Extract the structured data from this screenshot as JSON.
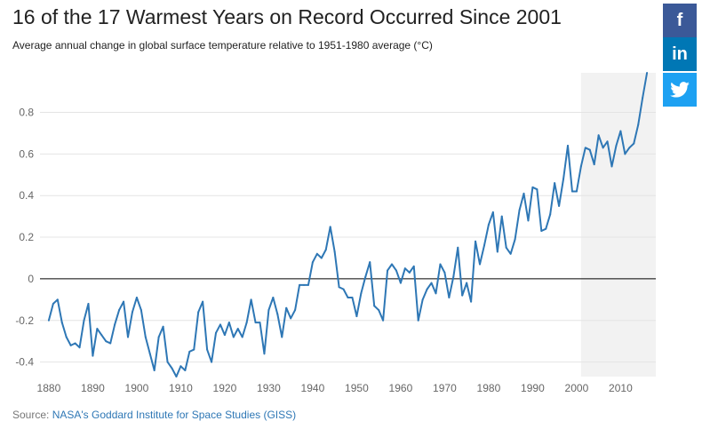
{
  "header": {
    "title": "16 of the 17 Warmest Years on Record Occurred Since 2001",
    "subtitle": "Average annual change in global surface temperature relative to 1951-1980 average (°C)"
  },
  "share": {
    "facebook_icon": "f",
    "linkedin_icon": "in",
    "twitter_icon": "twitter-bird-icon"
  },
  "footer": {
    "source_prefix": "Source: ",
    "source_link": "NASA's Goddard Institute for Space Studies (GISS)"
  },
  "colors": {
    "line": "#2e77b5",
    "shade": "#f2f2f2",
    "grid": "#e4e4e4",
    "zero_line": "#000000"
  },
  "chart_data": {
    "type": "line",
    "title": "16 of the 17 Warmest Years on Record Occurred Since 2001",
    "subtitle": "Average annual change in global surface temperature relative to 1951-1980 average (°C)",
    "xlim": [
      1878,
      2018
    ],
    "ylim": [
      -0.47,
      0.99
    ],
    "x_ticks": [
      1880,
      1890,
      1900,
      1910,
      1920,
      1930,
      1940,
      1950,
      1960,
      1970,
      1980,
      1990,
      2000,
      2010
    ],
    "y_ticks": [
      -0.4,
      -0.2,
      0,
      0.2,
      0.4,
      0.6,
      0.8
    ],
    "y_tick_labels": [
      "-0.4",
      "-0.2",
      "0",
      "0.2",
      "0.4",
      "0.6",
      "0.8"
    ],
    "highlight_range": [
      2001,
      2018
    ],
    "grid": true,
    "series": [
      {
        "x": [
          1880,
          1881,
          1882,
          1883,
          1884,
          1885,
          1886,
          1887,
          1888,
          1889,
          1890,
          1891,
          1892,
          1893,
          1894,
          1895,
          1896,
          1897,
          1898,
          1899,
          1900,
          1901,
          1902,
          1903,
          1904,
          1905,
          1906,
          1907,
          1908,
          1909,
          1910,
          1911,
          1912,
          1913,
          1914,
          1915,
          1916,
          1917,
          1918,
          1919,
          1920,
          1921,
          1922,
          1923,
          1924,
          1925,
          1926,
          1927,
          1928,
          1929,
          1930,
          1931,
          1932,
          1933,
          1934,
          1935,
          1936,
          1937,
          1938,
          1939,
          1940,
          1941,
          1942,
          1943,
          1944,
          1945,
          1946,
          1947,
          1948,
          1949,
          1950,
          1951,
          1952,
          1953,
          1954,
          1955,
          1956,
          1957,
          1958,
          1959,
          1960,
          1961,
          1962,
          1963,
          1964,
          1965,
          1966,
          1967,
          1968,
          1969,
          1970,
          1971,
          1972,
          1973,
          1974,
          1975,
          1976,
          1977,
          1978,
          1979,
          1980,
          1981,
          1982,
          1983,
          1984,
          1985,
          1986,
          1987,
          1988,
          1989,
          1990,
          1991,
          1992,
          1993,
          1994,
          1995,
          1996,
          1997,
          1998,
          1999,
          2000,
          2001,
          2002,
          2003,
          2004,
          2005,
          2006,
          2007,
          2008,
          2009,
          2010,
          2011,
          2012,
          2013,
          2014,
          2015,
          2016
        ],
        "values": [
          -0.2,
          -0.12,
          -0.1,
          -0.21,
          -0.28,
          -0.32,
          -0.31,
          -0.33,
          -0.2,
          -0.12,
          -0.37,
          -0.24,
          -0.27,
          -0.3,
          -0.31,
          -0.22,
          -0.15,
          -0.11,
          -0.28,
          -0.16,
          -0.09,
          -0.15,
          -0.28,
          -0.36,
          -0.44,
          -0.28,
          -0.23,
          -0.4,
          -0.43,
          -0.47,
          -0.42,
          -0.44,
          -0.35,
          -0.34,
          -0.16,
          -0.11,
          -0.34,
          -0.4,
          -0.26,
          -0.22,
          -0.27,
          -0.21,
          -0.28,
          -0.24,
          -0.28,
          -0.21,
          -0.1,
          -0.21,
          -0.21,
          -0.36,
          -0.15,
          -0.09,
          -0.17,
          -0.28,
          -0.14,
          -0.19,
          -0.15,
          -0.03,
          -0.03,
          -0.03,
          0.08,
          0.12,
          0.1,
          0.14,
          0.25,
          0.13,
          -0.04,
          -0.05,
          -0.09,
          -0.09,
          -0.18,
          -0.07,
          0.01,
          0.08,
          -0.13,
          -0.15,
          -0.2,
          0.04,
          0.07,
          0.04,
          -0.02,
          0.05,
          0.03,
          0.06,
          -0.2,
          -0.1,
          -0.05,
          -0.02,
          -0.07,
          0.07,
          0.03,
          -0.09,
          0.01,
          0.15,
          -0.08,
          -0.02,
          -0.11,
          0.18,
          0.07,
          0.16,
          0.26,
          0.32,
          0.13,
          0.3,
          0.15,
          0.12,
          0.19,
          0.33,
          0.41,
          0.28,
          0.44,
          0.43,
          0.23,
          0.24,
          0.31,
          0.46,
          0.35,
          0.48,
          0.64,
          0.42,
          0.42,
          0.54,
          0.63,
          0.62,
          0.55,
          0.69,
          0.63,
          0.66,
          0.54,
          0.64,
          0.71,
          0.6,
          0.63,
          0.65,
          0.74,
          0.87,
          0.99
        ]
      }
    ]
  }
}
